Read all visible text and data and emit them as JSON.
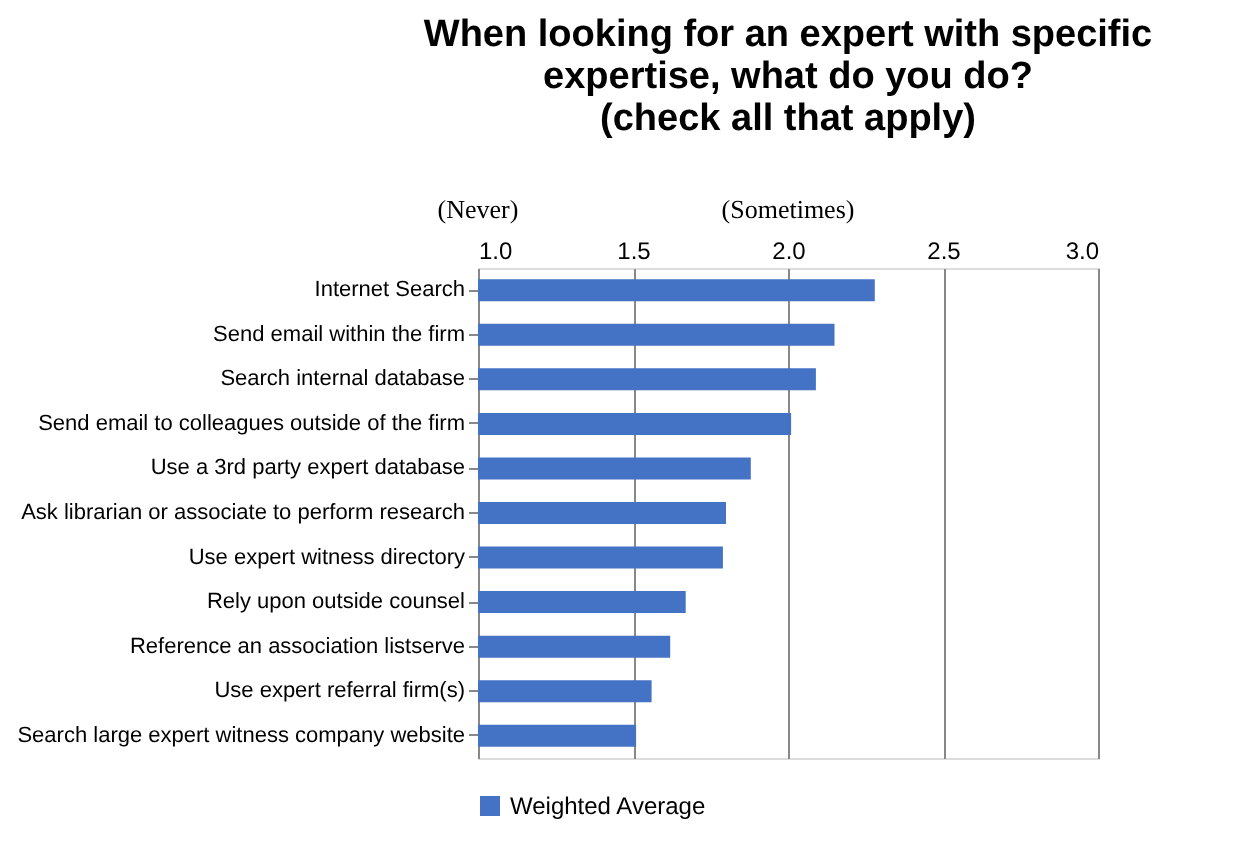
{
  "chart_data": {
    "type": "bar",
    "orientation": "horizontal",
    "title": [
      "When looking for an expert with specific",
      "expertise, what do you do?",
      "(check all that apply)"
    ],
    "categories": [
      "Internet Search",
      "Send email within the firm",
      "Search internal database",
      "Send email to colleagues outside of the firm",
      "Use a 3rd party expert database",
      "Ask librarian or associate to perform research",
      "Use expert witness directory",
      "Rely upon outside counsel",
      "Reference an association listserve",
      "Use expert referral firm(s)",
      "Search large expert witness company website"
    ],
    "series": [
      {
        "name": "Weighted Average",
        "color": "#4472c4",
        "values": [
          2.28,
          2.15,
          2.09,
          2.01,
          1.88,
          1.8,
          1.79,
          1.67,
          1.62,
          1.56,
          1.51
        ]
      }
    ],
    "xlim": [
      1.0,
      3.0
    ],
    "xticks": [
      {
        "value": 1.0,
        "label": "1.0"
      },
      {
        "value": 1.5,
        "label": "1.5"
      },
      {
        "value": 2.0,
        "label": "2.0"
      },
      {
        "value": 2.5,
        "label": "2.5"
      },
      {
        "value": 3.0,
        "label": "3.0"
      }
    ],
    "annotations": [
      "(Never)",
      "(Sometimes)"
    ],
    "grid": "x",
    "legend": "bottom"
  }
}
